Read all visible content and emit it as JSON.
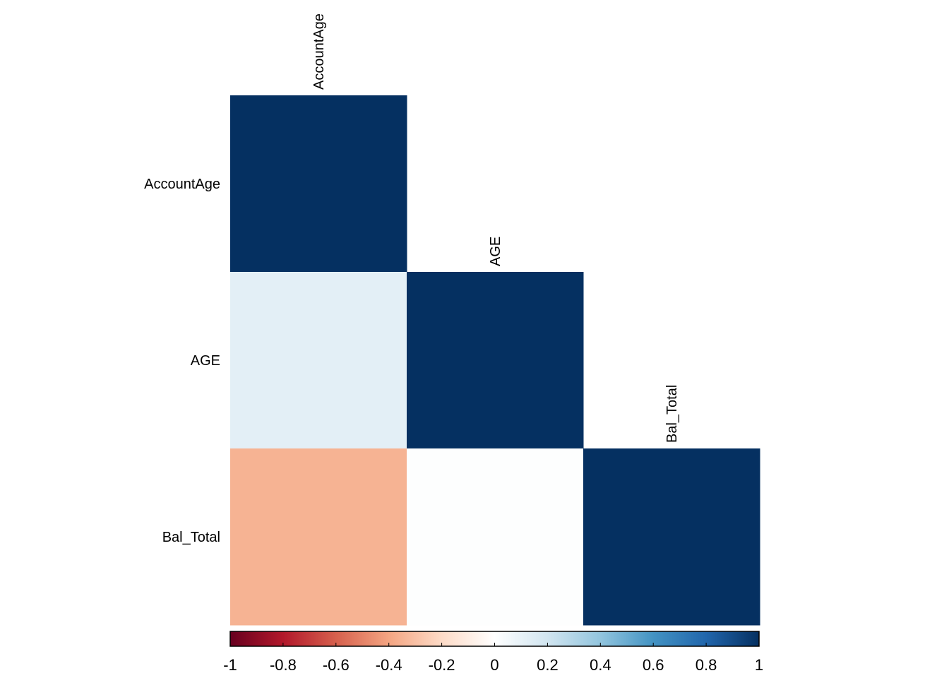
{
  "chart_data": {
    "type": "heatmap",
    "variables": [
      "AccountAge",
      "AGE",
      "Bal_Total"
    ],
    "layout": "lower-triangle",
    "correlation_matrix": [
      [
        1.0,
        null,
        null
      ],
      [
        0.12,
        1.0,
        null
      ],
      [
        -0.35,
        0.01,
        1.0
      ]
    ],
    "colorbar": {
      "min": -1,
      "max": 1,
      "ticks": [
        -1,
        -0.8,
        -0.6,
        -0.4,
        -0.2,
        0,
        0.2,
        0.4,
        0.6,
        0.8,
        1
      ],
      "tick_labels": [
        "-1",
        "-0.8",
        "-0.6",
        "-0.4",
        "-0.2",
        "0",
        "0.2",
        "0.4",
        "0.6",
        "0.8",
        "1"
      ],
      "placement": "bottom"
    },
    "palette": [
      "#67001F",
      "#B2182B",
      "#D6604D",
      "#F4A582",
      "#FDDBC7",
      "#FFFFFF",
      "#D1E5F0",
      "#92C5DE",
      "#4393C3",
      "#2166AC",
      "#053061"
    ],
    "grid": false
  }
}
